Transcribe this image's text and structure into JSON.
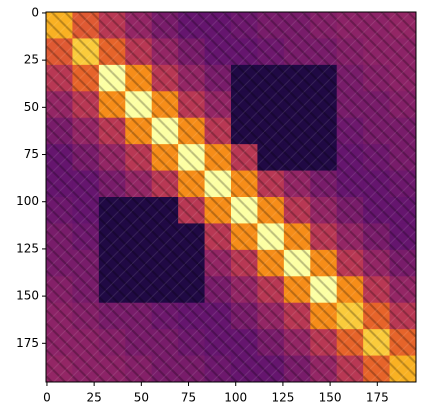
{
  "chart_data": {
    "type": "heatmap",
    "colormap": "inferno",
    "xlim": [
      -0.5,
      195.5
    ],
    "ylim": [
      195.5,
      -0.5
    ],
    "xticks": [
      0,
      25,
      50,
      75,
      100,
      125,
      150,
      175
    ],
    "yticks": [
      0,
      25,
      50,
      75,
      100,
      125,
      150,
      175
    ],
    "z": [
      [
        0.85,
        0.65,
        0.52,
        0.42,
        0.35,
        0.3,
        0.3,
        0.32,
        0.35,
        0.35,
        0.38,
        0.4,
        0.4,
        0.42
      ],
      [
        0.65,
        0.9,
        0.68,
        0.52,
        0.42,
        0.35,
        0.3,
        0.3,
        0.32,
        0.35,
        0.35,
        0.38,
        0.4,
        0.4
      ],
      [
        0.52,
        0.68,
        1.0,
        0.78,
        0.52,
        0.42,
        0.35,
        0.12,
        0.12,
        0.12,
        0.12,
        0.35,
        0.38,
        0.4
      ],
      [
        0.42,
        0.52,
        0.78,
        1.0,
        0.78,
        0.52,
        0.42,
        0.12,
        0.12,
        0.12,
        0.12,
        0.35,
        0.35,
        0.38
      ],
      [
        0.35,
        0.42,
        0.52,
        0.78,
        1.0,
        0.78,
        0.52,
        0.12,
        0.12,
        0.12,
        0.12,
        0.32,
        0.35,
        0.35
      ],
      [
        0.3,
        0.35,
        0.42,
        0.52,
        0.78,
        1.0,
        0.78,
        0.52,
        0.12,
        0.12,
        0.12,
        0.3,
        0.32,
        0.35
      ],
      [
        0.3,
        0.3,
        0.35,
        0.42,
        0.52,
        0.78,
        1.0,
        0.78,
        0.52,
        0.42,
        0.35,
        0.3,
        0.3,
        0.32
      ],
      [
        0.32,
        0.3,
        0.12,
        0.12,
        0.12,
        0.52,
        0.78,
        1.0,
        0.78,
        0.52,
        0.42,
        0.35,
        0.3,
        0.3
      ],
      [
        0.35,
        0.32,
        0.12,
        0.12,
        0.12,
        0.12,
        0.52,
        0.78,
        1.0,
        0.78,
        0.52,
        0.42,
        0.35,
        0.3
      ],
      [
        0.35,
        0.35,
        0.12,
        0.12,
        0.12,
        0.12,
        0.42,
        0.52,
        0.78,
        1.0,
        0.78,
        0.52,
        0.42,
        0.35
      ],
      [
        0.38,
        0.35,
        0.12,
        0.12,
        0.12,
        0.12,
        0.35,
        0.42,
        0.52,
        0.78,
        1.0,
        0.78,
        0.52,
        0.42
      ],
      [
        0.4,
        0.38,
        0.35,
        0.35,
        0.32,
        0.3,
        0.3,
        0.35,
        0.42,
        0.52,
        0.78,
        0.9,
        0.68,
        0.52
      ],
      [
        0.4,
        0.4,
        0.38,
        0.35,
        0.35,
        0.32,
        0.3,
        0.3,
        0.35,
        0.42,
        0.52,
        0.68,
        0.9,
        0.68
      ],
      [
        0.42,
        0.4,
        0.4,
        0.38,
        0.35,
        0.35,
        0.32,
        0.3,
        0.3,
        0.35,
        0.42,
        0.52,
        0.68,
        0.85
      ]
    ]
  }
}
